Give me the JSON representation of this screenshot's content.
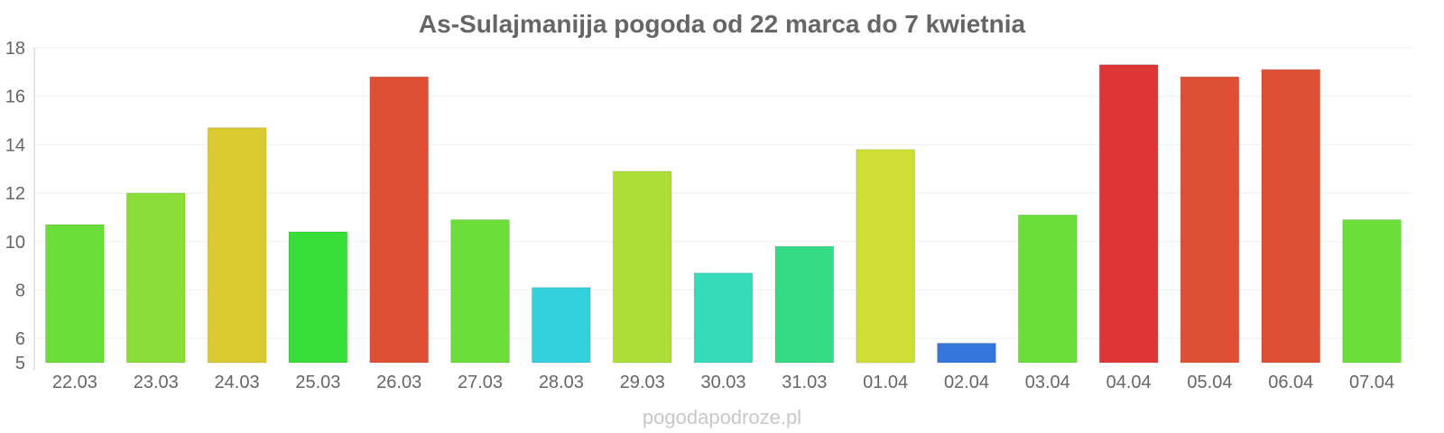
{
  "chart_data": {
    "type": "bar",
    "title": "As-Sulajmanijja pogoda od 22 marca do 7 kwietnia",
    "categories": [
      "22.03",
      "23.03",
      "24.03",
      "25.03",
      "26.03",
      "27.03",
      "28.03",
      "29.03",
      "30.03",
      "31.03",
      "01.04",
      "02.04",
      "03.04",
      "04.04",
      "05.04",
      "06.04",
      "07.04"
    ],
    "values": [
      10.7,
      12.0,
      14.7,
      10.4,
      16.8,
      10.9,
      8.1,
      12.9,
      8.7,
      9.8,
      13.8,
      5.8,
      11.1,
      17.3,
      16.8,
      17.1,
      10.9
    ],
    "colors": [
      "#6bde37",
      "#8ade37",
      "#dbc932",
      "#36de37",
      "#de5036",
      "#6bde37",
      "#34d0dc",
      "#acde37",
      "#35dbbb",
      "#36db85",
      "#cede35",
      "#3576dd",
      "#6bde37",
      "#de3636",
      "#de5036",
      "#de5036",
      "#6bde37"
    ],
    "ylim": [
      5,
      18
    ],
    "yticks": [
      5,
      6,
      8,
      10,
      12,
      14,
      16,
      18
    ],
    "grid": true,
    "legend": "none",
    "xlabel": "",
    "ylabel": ""
  },
  "watermark": "pogodapodroze.pl"
}
